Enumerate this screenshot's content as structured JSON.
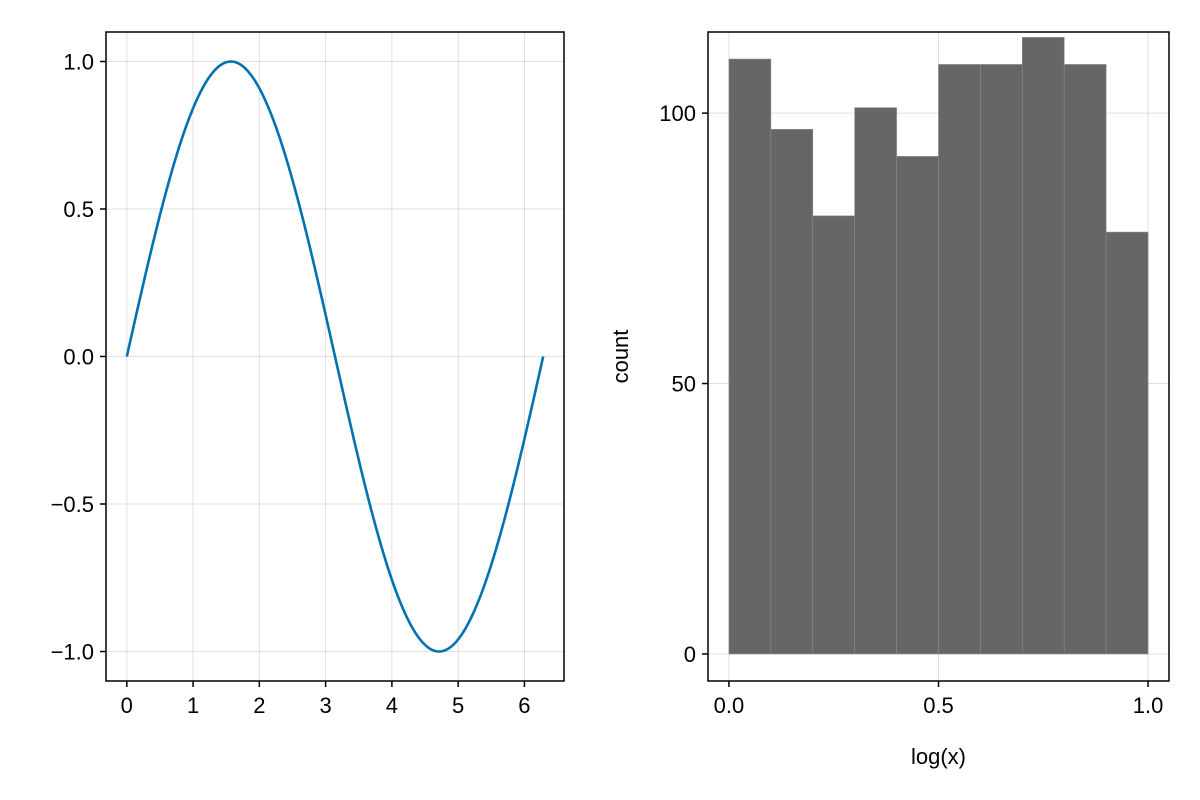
{
  "chart_data": [
    {
      "type": "line",
      "title": "",
      "xlabel": "",
      "ylabel": "",
      "xlim": [
        -0.314,
        6.597
      ],
      "ylim": [
        -1.1,
        1.1
      ],
      "xticks": [
        0,
        1,
        2,
        3,
        4,
        5,
        6
      ],
      "xtick_labels": [
        "0",
        "1",
        "2",
        "3",
        "4",
        "5",
        "6"
      ],
      "yticks": [
        -1.0,
        -0.5,
        0.0,
        0.5,
        1.0
      ],
      "ytick_labels": [
        "−1.0",
        "−0.5",
        "0.0",
        "0.5",
        "1.0"
      ],
      "grid": true,
      "legend": "none",
      "series": [
        {
          "color": "#0072b2",
          "x": [
            0,
            0.3142,
            0.6283,
            0.9425,
            1.2566,
            1.5708,
            1.885,
            2.1991,
            2.5133,
            2.8274,
            3.1416,
            3.4558,
            3.7699,
            4.0841,
            4.3982,
            4.7124,
            5.0265,
            5.3407,
            5.6549,
            5.969,
            6.2832
          ],
          "y": [
            0,
            0.309,
            0.5878,
            0.809,
            0.9511,
            1.0,
            0.9511,
            0.809,
            0.5878,
            0.309,
            0,
            -0.309,
            -0.5878,
            -0.809,
            -0.9511,
            -1.0,
            -0.9511,
            -0.809,
            -0.5878,
            -0.309,
            0
          ]
        }
      ]
    },
    {
      "type": "bar",
      "title": "",
      "xlabel": "log(x)",
      "ylabel": "count",
      "xlim": [
        -0.05,
        1.05
      ],
      "ylim": [
        -5,
        115
      ],
      "xticks": [
        0.0,
        0.5,
        1.0
      ],
      "xtick_labels": [
        "0.0",
        "0.5",
        "1.0"
      ],
      "yticks": [
        0,
        50,
        100
      ],
      "ytick_labels": [
        "0",
        "50",
        "100"
      ],
      "grid": true,
      "legend": "none",
      "bar_color": "#666666",
      "bin_edges": [
        0.0,
        0.1,
        0.2,
        0.3,
        0.4,
        0.5,
        0.6,
        0.7,
        0.8,
        0.9,
        1.0
      ],
      "values": [
        110,
        97,
        81,
        101,
        92,
        109,
        109,
        114,
        109,
        78
      ]
    }
  ]
}
